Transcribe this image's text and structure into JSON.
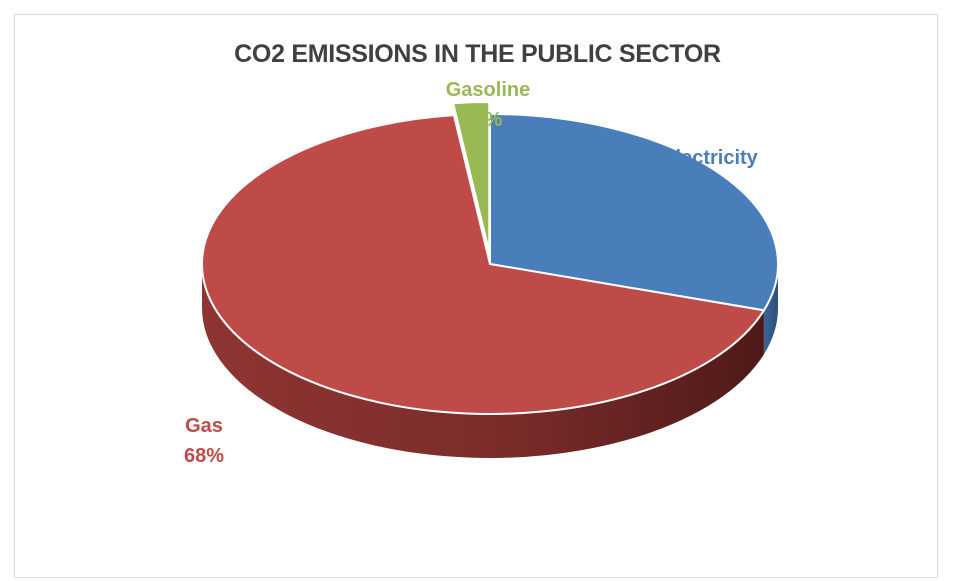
{
  "chart_data": {
    "type": "pie",
    "title": "CO2 EMISSIONS IN THE PUBLIC SECTOR",
    "slices": [
      {
        "name": "Electricity",
        "value": 30,
        "label": "30%",
        "color": "#4a7ebb"
      },
      {
        "name": "Gas",
        "value": 68,
        "label": "68%",
        "color": "#be4b48"
      },
      {
        "name": "Gasoline",
        "value": 2,
        "label": "2%",
        "color": "#98b954"
      }
    ],
    "style": "3d",
    "exploded": "Gasoline"
  }
}
